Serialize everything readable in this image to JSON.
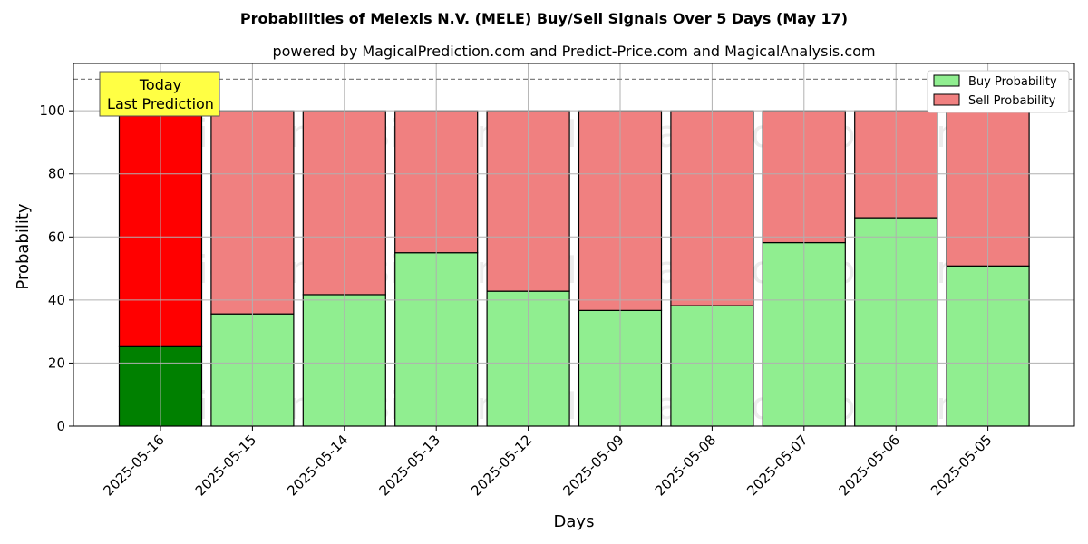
{
  "chart_data": {
    "type": "bar",
    "stacked": true,
    "title": "Probabilities of Melexis N.V. (MELE) Buy/Sell Signals Over 5 Days (May 17)",
    "subtitle": "powered by MagicalPrediction.com and Predict-Price.com and MagicalAnalysis.com",
    "xlabel": "Days",
    "ylabel": "Probability",
    "ylim": [
      0,
      115
    ],
    "yticks": [
      0,
      20,
      40,
      60,
      80,
      100
    ],
    "grid": true,
    "legend_position": "top-right",
    "reference_line": 110,
    "categories": [
      "2025-05-16",
      "2025-05-15",
      "2025-05-14",
      "2025-05-13",
      "2025-05-12",
      "2025-05-09",
      "2025-05-08",
      "2025-05-07",
      "2025-05-06",
      "2025-05-05"
    ],
    "series": [
      {
        "name": "Buy Probability",
        "color": "#90ee90",
        "highlight_color": "#008000",
        "values": [
          25.2,
          35.6,
          41.7,
          55.0,
          42.8,
          36.7,
          38.2,
          58.2,
          66.1,
          50.8
        ]
      },
      {
        "name": "Sell Probability",
        "color": "#f08080",
        "highlight_color": "#ff0000",
        "values": [
          74.8,
          64.4,
          58.3,
          45.0,
          57.2,
          63.3,
          61.8,
          41.8,
          33.9,
          49.2
        ]
      }
    ],
    "annotation": {
      "lines": [
        "Today",
        "Last Prediction"
      ],
      "category_index": 0,
      "box_color": "#ffff44"
    },
    "watermarks": [
      "MagicalAnalysis.com",
      "MagicalPrediction.com"
    ]
  }
}
